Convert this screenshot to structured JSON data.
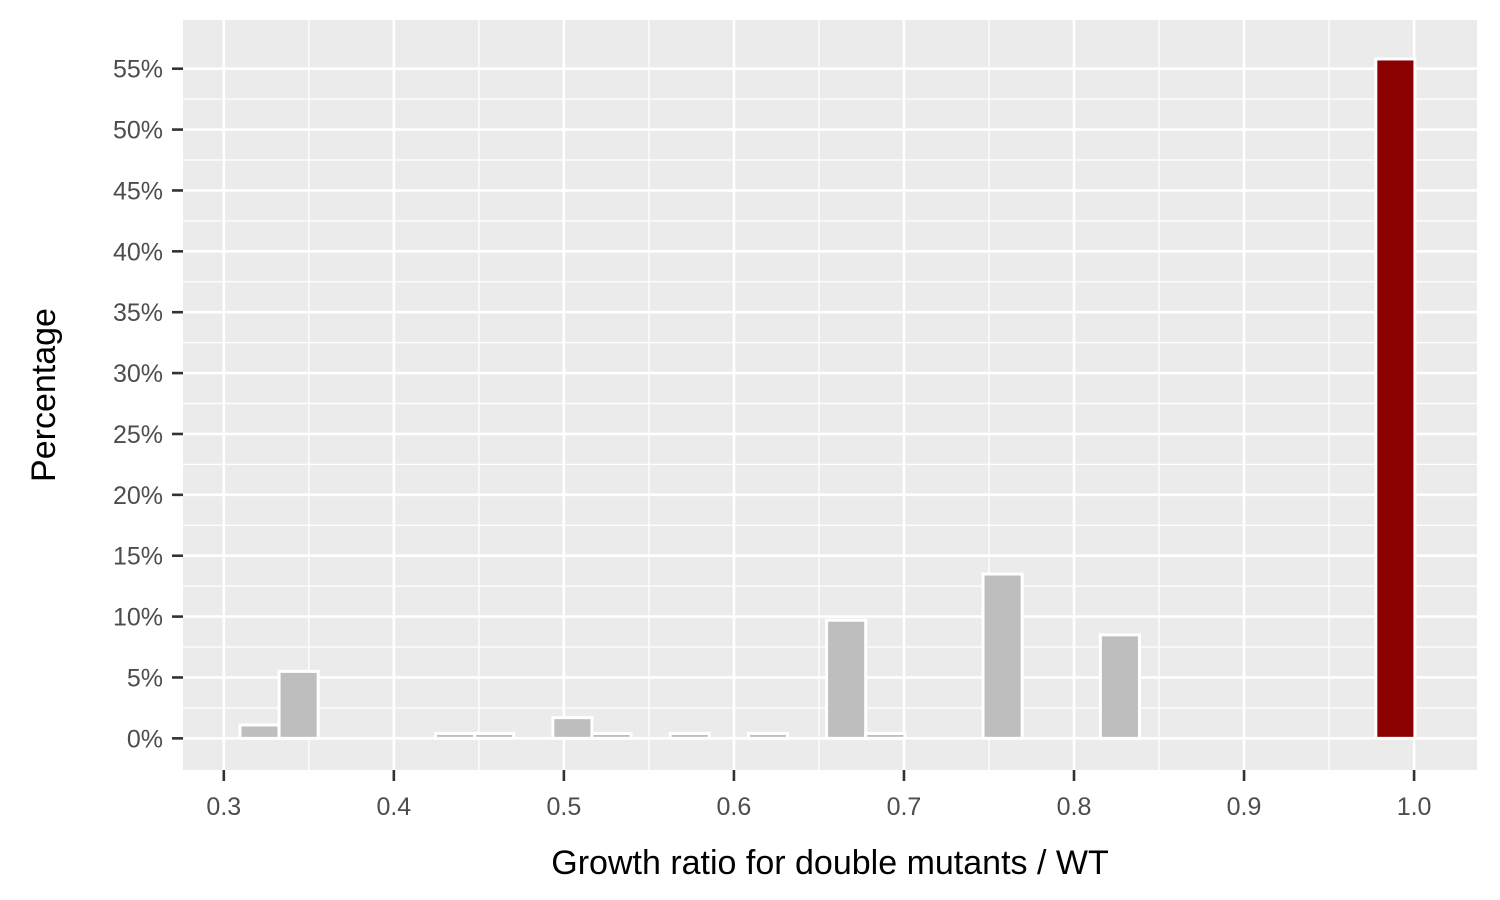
{
  "chart_data": {
    "type": "bar",
    "xlabel": "Growth ratio for double mutants / WT",
    "ylabel": "Percentage",
    "x_ticks": [
      "0.3",
      "0.4",
      "0.5",
      "0.6",
      "0.7",
      "0.8",
      "0.9",
      "1.0"
    ],
    "y_ticks": [
      "0%",
      "5%",
      "10%",
      "15%",
      "20%",
      "25%",
      "30%",
      "35%",
      "40%",
      "45%",
      "50%",
      "55%"
    ],
    "xlim": [
      0.276,
      1.037
    ],
    "ylim": [
      -2.6,
      59.0
    ],
    "bin_width": 0.023,
    "bars": [
      {
        "x": 0.321,
        "value": 1.1,
        "highlight": false
      },
      {
        "x": 0.344,
        "value": 5.5,
        "highlight": false
      },
      {
        "x": 0.436,
        "value": 0.4,
        "highlight": false
      },
      {
        "x": 0.459,
        "value": 0.4,
        "highlight": false
      },
      {
        "x": 0.505,
        "value": 1.7,
        "highlight": false
      },
      {
        "x": 0.528,
        "value": 0.4,
        "highlight": false
      },
      {
        "x": 0.574,
        "value": 0.4,
        "highlight": false
      },
      {
        "x": 0.62,
        "value": 0.4,
        "highlight": false
      },
      {
        "x": 0.666,
        "value": 9.7,
        "highlight": false
      },
      {
        "x": 0.689,
        "value": 0.4,
        "highlight": false
      },
      {
        "x": 0.758,
        "value": 13.5,
        "highlight": false
      },
      {
        "x": 0.827,
        "value": 8.5,
        "highlight": false
      },
      {
        "x": 0.989,
        "value": 55.8,
        "highlight": true
      }
    ],
    "colors": {
      "panel": "#ebebeb",
      "grid": "#ffffff",
      "bar": "#bebebe",
      "bar_highlight": "#8b0000",
      "bar_outline": "#ffffff"
    },
    "grid": true,
    "legend": "none"
  }
}
